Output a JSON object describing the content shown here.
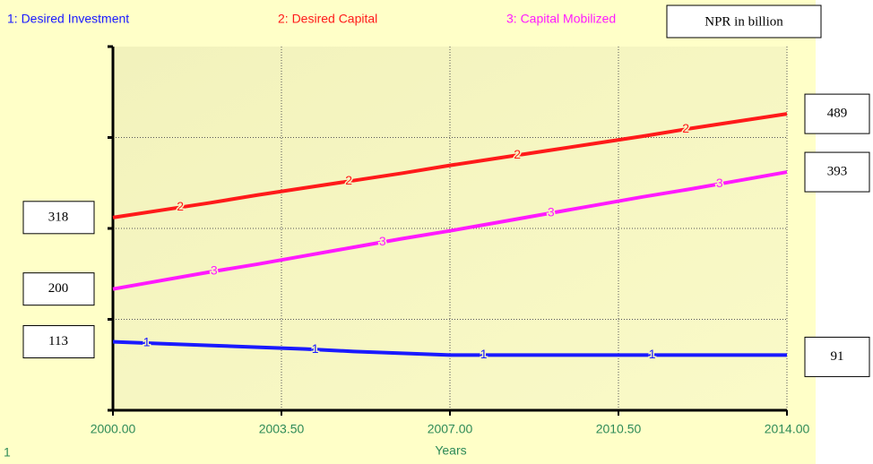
{
  "chart_data": {
    "type": "line",
    "unit_label": "NPR in billion",
    "x_label": "Years",
    "page": "1",
    "x": [
      2000,
      2001,
      2002,
      2003,
      2004,
      2005,
      2006,
      2007,
      2008,
      2009,
      2010,
      2011,
      2012,
      2013,
      2014
    ],
    "series": [
      {
        "name": "1: Desired Investment",
        "marker": "1",
        "color": "#1a1aff",
        "values": [
          113,
          110,
          107,
          104,
          101,
          97,
          94,
          91,
          91,
          91,
          91,
          91,
          91,
          91,
          91
        ]
      },
      {
        "name": "2: Desired Capital",
        "marker": "2",
        "color": "#ff1a1a",
        "values": [
          318,
          330,
          342,
          355,
          367,
          379,
          391,
          404,
          416,
          428,
          440,
          452,
          465,
          477,
          489
        ]
      },
      {
        "name": "3: Capital Mobilized",
        "marker": "3",
        "color": "#ff1aff",
        "values": [
          200,
          214,
          228,
          241,
          255,
          269,
          283,
          296,
          310,
          324,
          338,
          352,
          365,
          379,
          393
        ]
      }
    ],
    "xlim": [
      2000,
      2014
    ],
    "xticks": [
      {
        "value": 2000,
        "label": "2000.00"
      },
      {
        "value": 2003.5,
        "label": "2003.50"
      },
      {
        "value": 2007,
        "label": "2007.00"
      },
      {
        "value": 2010.5,
        "label": "2010.50"
      },
      {
        "value": 2014,
        "label": "2014.00"
      }
    ],
    "ylim": [
      0,
      600
    ],
    "yticks": [
      0,
      150,
      300,
      450,
      600
    ],
    "grid": true
  }
}
